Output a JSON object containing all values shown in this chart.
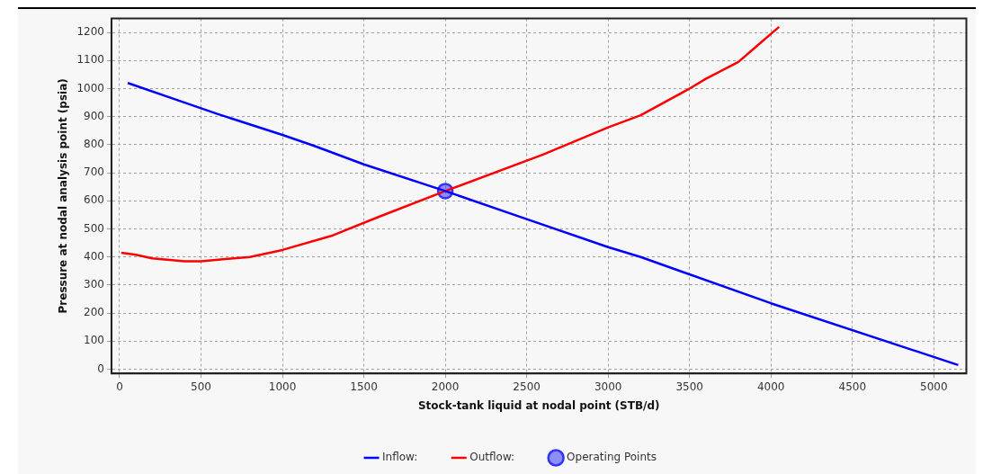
{
  "chart_data": {
    "type": "line",
    "xlabel": "Stock-tank liquid at nodal point (STB/d)",
    "ylabel": "Pressure at nodal analysis point (psia)",
    "xlim": [
      -50,
      5200
    ],
    "xticks": [
      0,
      500,
      1000,
      1500,
      2000,
      2500,
      3000,
      3500,
      4000,
      4500,
      5000
    ],
    "ylim": [
      -15,
      1250
    ],
    "yticks": [
      0,
      100,
      200,
      300,
      400,
      500,
      600,
      700,
      800,
      900,
      1000,
      1100,
      1200
    ],
    "grid": true,
    "legend": "bottom",
    "marker": "none",
    "line_style": "solid",
    "series": [
      {
        "name": "Inflow:",
        "color": "#0000ff",
        "x": [
          50,
          400,
          600,
          1000,
          1200,
          1500,
          2000,
          2500,
          3000,
          3200,
          4000,
          5150
        ],
        "values": [
          1020,
          950,
          910,
          835,
          795,
          730,
          635,
          535,
          435,
          400,
          235,
          15
        ]
      },
      {
        "name": "Outflow:",
        "color": "#ff0000",
        "x": [
          10,
          100,
          200,
          400,
          500,
          800,
          1000,
          1300,
          1600,
          2000,
          2600,
          3000,
          3200,
          3500,
          3600,
          3800,
          3900,
          4050
        ],
        "values": [
          415,
          408,
          395,
          385,
          385,
          400,
          425,
          475,
          545,
          635,
          765,
          862,
          905,
          1000,
          1035,
          1095,
          1145,
          1220
        ]
      },
      {
        "name": "Operating Points",
        "type": "scatter",
        "marker": "circle",
        "color": "#3333ff",
        "x": [
          2000
        ],
        "values": [
          635
        ]
      }
    ]
  }
}
